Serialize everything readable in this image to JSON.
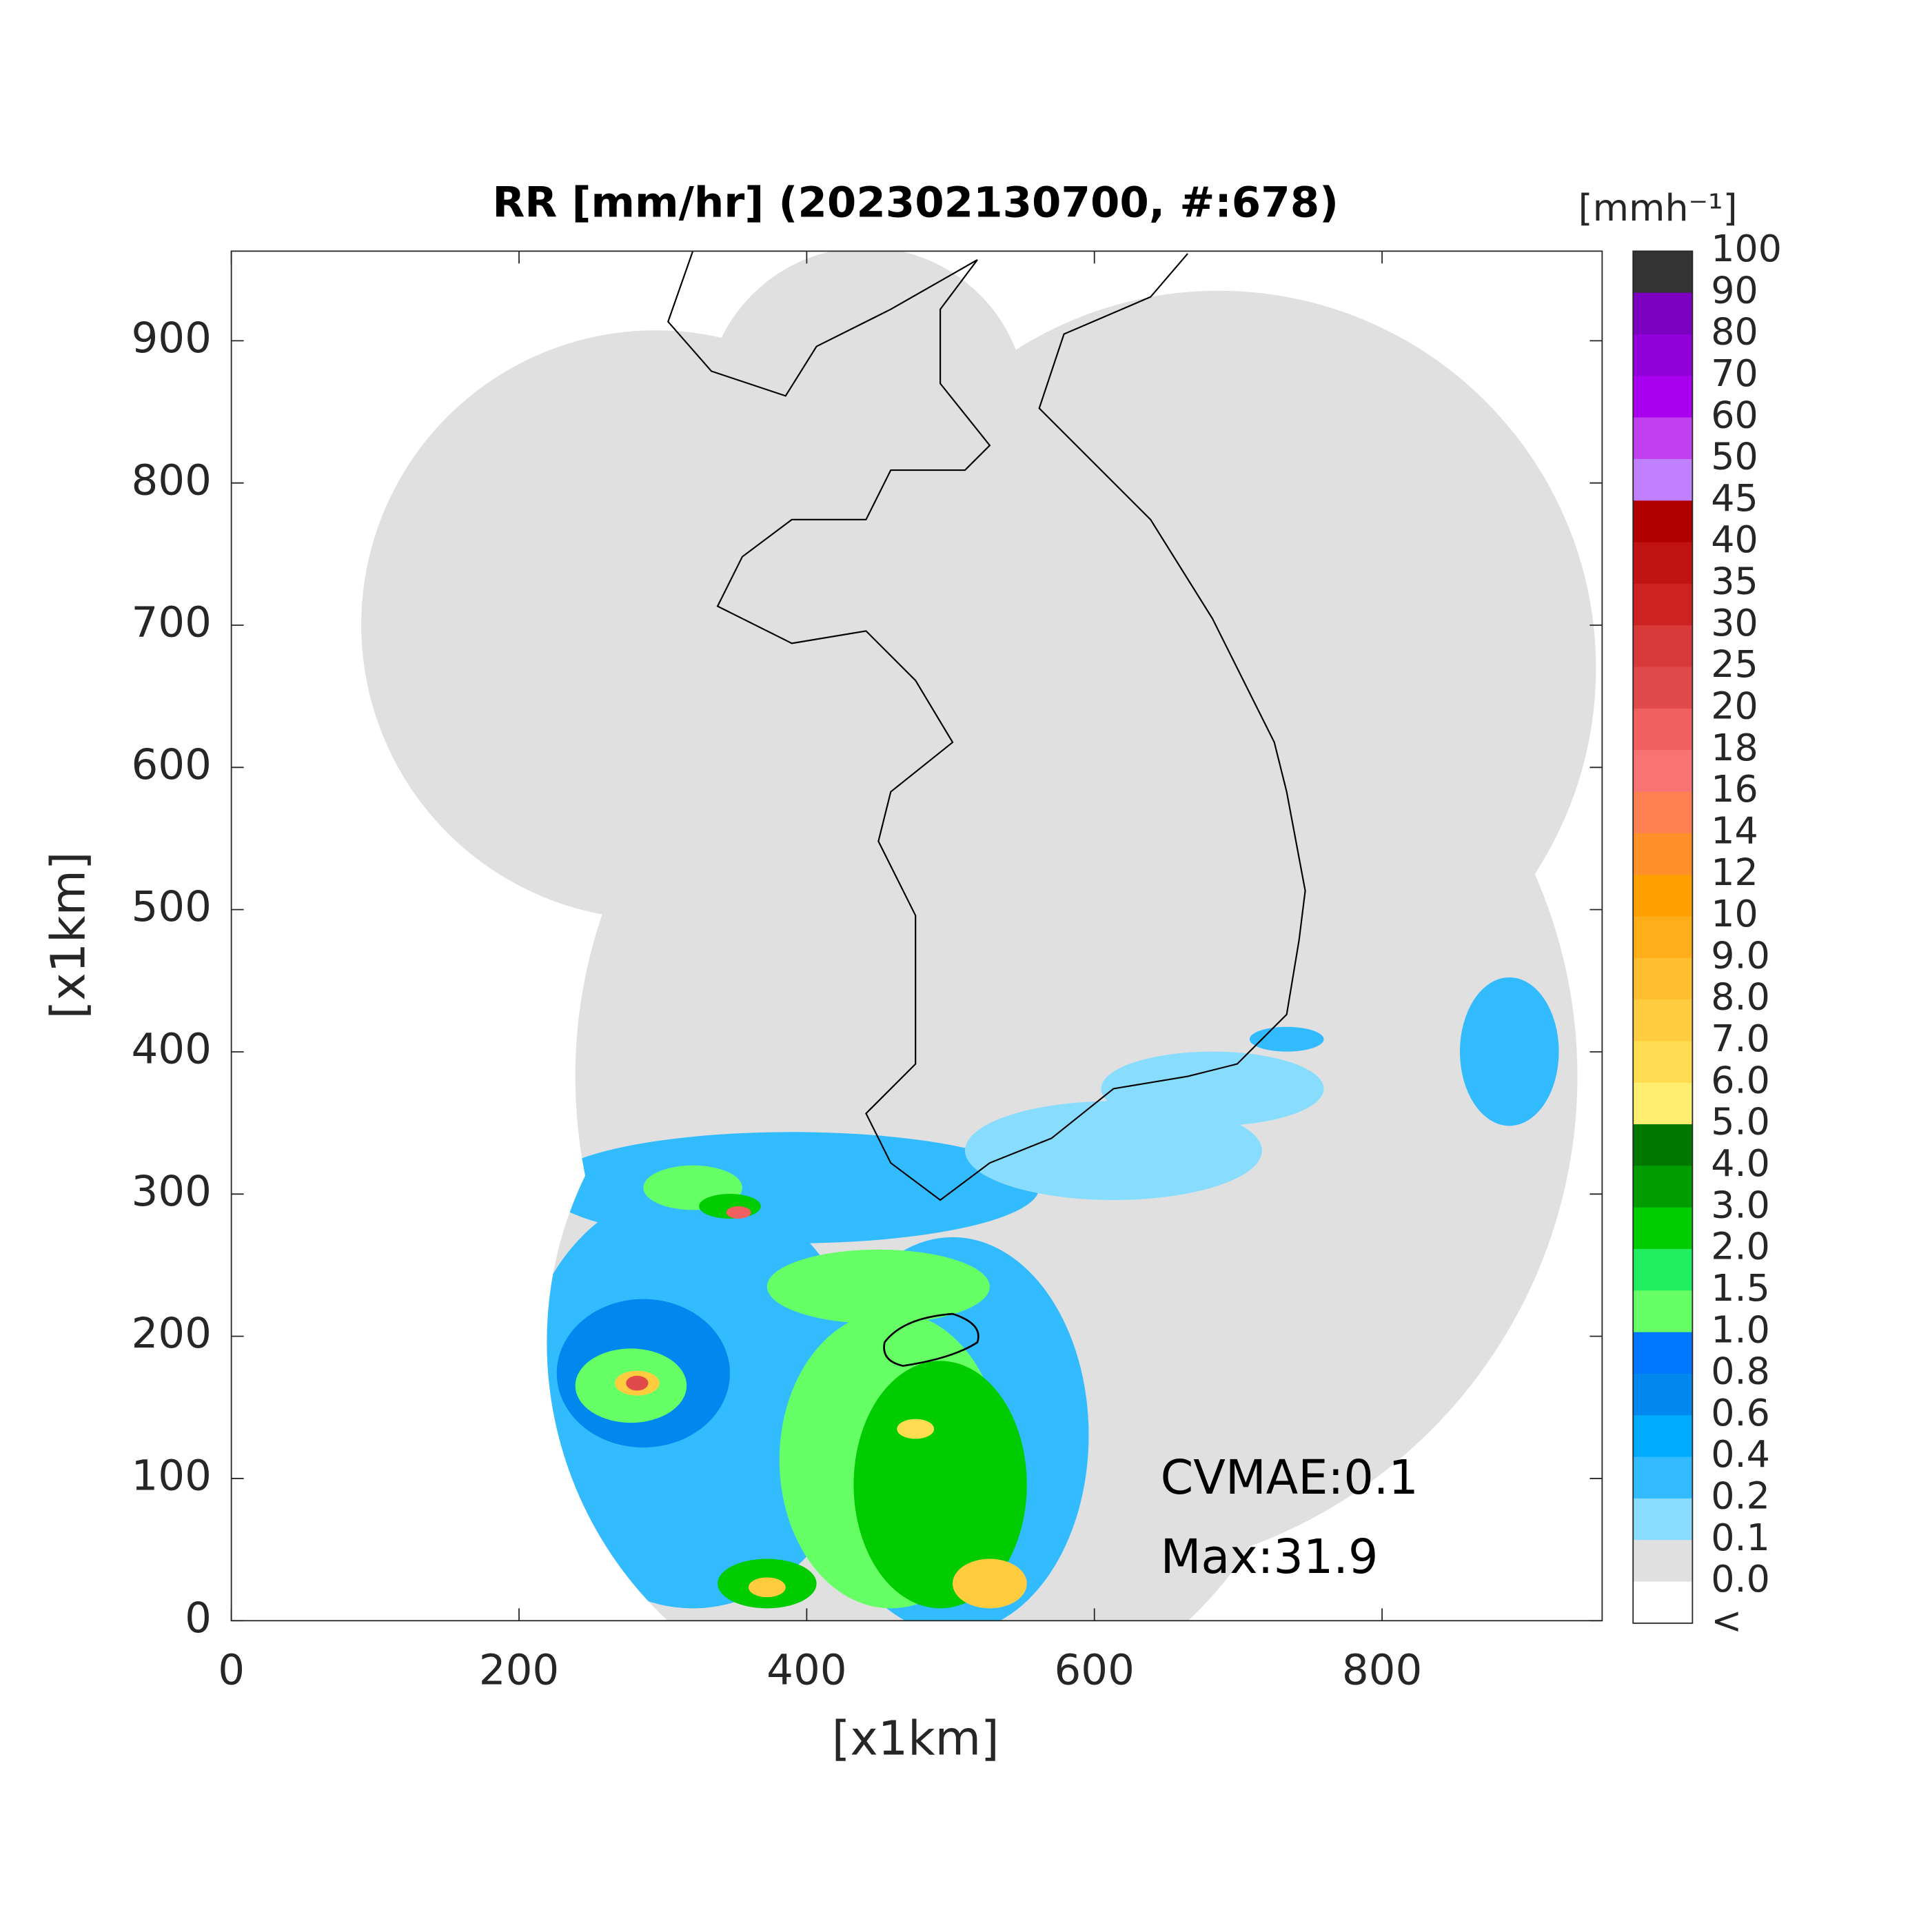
{
  "chart_data": {
    "type": "map",
    "title": "RR [mm/hr] (202302130700, #:678)",
    "xlabel": "[x1km]",
    "ylabel": "[x1km]",
    "xlim": [
      0,
      953
    ],
    "ylim": [
      0,
      963
    ],
    "xticks": [
      0,
      200,
      400,
      600,
      800
    ],
    "yticks": [
      0,
      100,
      200,
      300,
      400,
      500,
      600,
      700,
      800,
      900
    ],
    "colorbar": {
      "label": "[mmh⁻¹]",
      "levels": [
        "100",
        "90",
        "80",
        "70",
        "60",
        "50",
        "45",
        "40",
        "35",
        "30",
        "25",
        "20",
        "18",
        "16",
        "14",
        "12",
        "10",
        "9.0",
        "8.0",
        "7.0",
        "6.0",
        "5.0",
        "4.0",
        "3.0",
        "2.0",
        "1.5",
        "1.0",
        "0.8",
        "0.6",
        "0.4",
        "0.2",
        "0.1",
        "0.0",
        "<"
      ],
      "colors": [
        "#333333",
        "#7c00bf",
        "#9000d8",
        "#a800ee",
        "#c040f0",
        "#c080ff",
        "#b00000",
        "#c01414",
        "#cc2222",
        "#d83a3a",
        "#e04a4a",
        "#f06060",
        "#f87474",
        "#ff8050",
        "#ff902a",
        "#ffa000",
        "#ffad18",
        "#ffbd30",
        "#ffcc40",
        "#ffdc50",
        "#ffee70",
        "#007800",
        "#009c00",
        "#00cc00",
        "#20ee60",
        "#66ff66",
        "#0077ff",
        "#0088ee",
        "#00aaff",
        "#33bbff",
        "#88ddff",
        "#e0e0e0",
        "#ffffff"
      ]
    },
    "annotations": [
      "CVMAE:0.1",
      "Max:31.9"
    ]
  }
}
